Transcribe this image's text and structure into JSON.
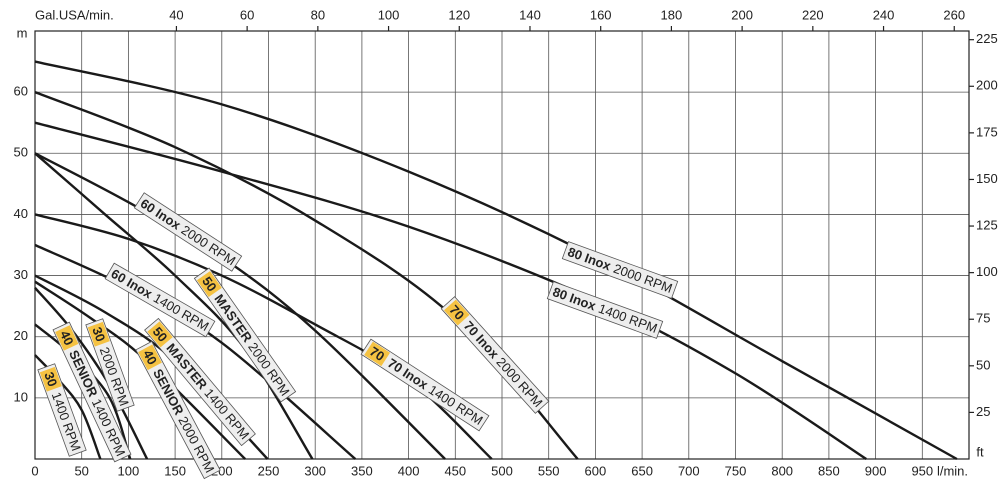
{
  "chart_data": {
    "type": "line",
    "xlabel": "l/min.",
    "x2label": "Gal.USA/min.",
    "ylabel": "m",
    "y2label": "ft",
    "xlim": [
      0,
      1000
    ],
    "xticks": [
      0,
      50,
      100,
      150,
      200,
      250,
      300,
      350,
      400,
      450,
      500,
      550,
      600,
      650,
      700,
      750,
      800,
      850,
      900,
      950
    ],
    "x2lim": [
      0,
      264.17
    ],
    "x2ticks": [
      40,
      60,
      80,
      100,
      120,
      140,
      160,
      180,
      200,
      220,
      240,
      260
    ],
    "ylim": [
      0,
      70
    ],
    "yticks": [
      10,
      20,
      30,
      40,
      50,
      60
    ],
    "y2lim": [
      0,
      229.66
    ],
    "y2ticks": [
      25,
      50,
      75,
      100,
      125,
      150,
      175,
      200,
      225
    ],
    "grid": true,
    "series": [
      {
        "name": "80 Inox",
        "rpm": "2000 RPM",
        "color": "#1a1a1a",
        "x": [
          0,
          200,
          400,
          600,
          800,
          987
        ],
        "values": [
          65,
          58,
          47,
          33,
          16,
          0
        ]
      },
      {
        "name": "80 Inox",
        "rpm": "1400 RPM",
        "color": "#1a1a1a",
        "x": [
          0,
          200,
          400,
          600,
          750,
          890
        ],
        "values": [
          55,
          47,
          38,
          26,
          14,
          0
        ]
      },
      {
        "badge": "70",
        "name": "70 Inox",
        "rpm": "2000 RPM",
        "color": "#1a1a1a",
        "x": [
          0,
          150,
          300,
          450,
          581
        ],
        "values": [
          60,
          51,
          39,
          23,
          0
        ]
      },
      {
        "badge": "70",
        "name": "70 Inox",
        "rpm": "1400 RPM",
        "color": "#1a1a1a",
        "x": [
          0,
          100,
          200,
          300,
          400,
          489
        ],
        "values": [
          40,
          36,
          30,
          22,
          13,
          0
        ]
      },
      {
        "name": "60 Inox",
        "rpm": "2000 RPM",
        "color": "#1a1a1a",
        "x": [
          0,
          100,
          200,
          300,
          439
        ],
        "values": [
          50,
          42,
          33,
          21,
          0
        ]
      },
      {
        "name": "60 Inox",
        "rpm": "1400 RPM",
        "color": "#1a1a1a",
        "x": [
          0,
          100,
          200,
          343
        ],
        "values": [
          35,
          28,
          19,
          0
        ]
      },
      {
        "badge": "50",
        "name": "MASTER",
        "rpm": "2000 RPM",
        "color": "#1a1a1a",
        "x": [
          0,
          75,
          150,
          225,
          297
        ],
        "values": [
          50,
          40,
          30,
          18,
          0
        ]
      },
      {
        "badge": "50",
        "name": "MASTER",
        "rpm": "1400 RPM",
        "color": "#1a1a1a",
        "x": [
          0,
          75,
          150,
          249
        ],
        "values": [
          30,
          24,
          16,
          0
        ]
      },
      {
        "badge": "40",
        "name": "SENIOR",
        "rpm": "2000 RPM",
        "color": "#1a1a1a",
        "x": [
          0,
          60,
          120,
          225
        ],
        "values": [
          29,
          23,
          16,
          0
        ]
      },
      {
        "badge": "40",
        "name": "SENIOR",
        "rpm": "1400 RPM",
        "color": "#1a1a1a",
        "x": [
          0,
          40,
          80,
          102
        ],
        "values": [
          22,
          17,
          10,
          0
        ]
      },
      {
        "badge": "30",
        "rpm": "2000 RPM",
        "color": "#1a1a1a",
        "x": [
          0,
          40,
          80,
          120
        ],
        "values": [
          28,
          21,
          12,
          0
        ]
      },
      {
        "badge": "30",
        "rpm": "1400 RPM",
        "color": "#1a1a1a",
        "x": [
          0,
          25,
          50,
          70
        ],
        "values": [
          17,
          13,
          8,
          0
        ]
      }
    ]
  }
}
